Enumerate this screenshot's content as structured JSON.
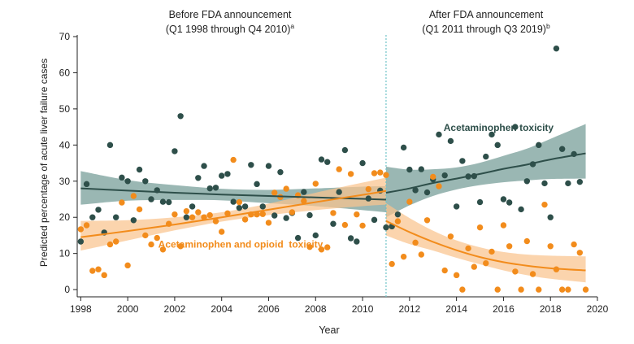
{
  "chart_data": {
    "type": "scatter",
    "title": "",
    "xlabel": "Year",
    "ylabel": "Predicted percentage of acute liver failure cases",
    "xlim": [
      1997.85,
      2020
    ],
    "ylim": [
      -2,
      70
    ],
    "xticks": [
      "1998",
      "2000",
      "2002",
      "2004",
      "2006",
      "2008",
      "2010",
      "2012",
      "2014",
      "2016",
      "2018",
      "2020"
    ],
    "yticks": [
      "0",
      "10",
      "20",
      "30",
      "40",
      "50",
      "60",
      "70"
    ],
    "colors": {
      "green": "#2e4f4a",
      "green_band": "#7ea39d",
      "orange": "#f28c1c",
      "orange_band": "#f9c48e",
      "divider": "#6fc3c8"
    },
    "divider_x": 2011.0,
    "period_labels": {
      "before_line1": "Before FDA announcement",
      "before_line2": "(Q1 1998 through Q4 2010)",
      "before_sup": "a",
      "after_line1": "After FDA announcement",
      "after_line2": "(Q1 2011 through Q3 2019)",
      "after_sup": "b"
    },
    "series": [
      {
        "name": "Acetaminophen toxicity",
        "color": "#2e4f4a",
        "points": [
          [
            1998.0,
            13.3
          ],
          [
            1998.25,
            29.2
          ],
          [
            1998.5,
            20.0
          ],
          [
            1998.75,
            22.1
          ],
          [
            1999.0,
            15.8
          ],
          [
            1999.25,
            40.0
          ],
          [
            1999.5,
            20.0
          ],
          [
            1999.75,
            31.0
          ],
          [
            2000.0,
            30.0
          ],
          [
            2000.25,
            19.2
          ],
          [
            2000.5,
            33.2
          ],
          [
            2000.75,
            30.0
          ],
          [
            2001.0,
            25.0
          ],
          [
            2001.25,
            27.5
          ],
          [
            2001.5,
            24.3
          ],
          [
            2001.75,
            24.2
          ],
          [
            2002.0,
            38.3
          ],
          [
            2002.25,
            48.0
          ],
          [
            2002.5,
            20.0
          ],
          [
            2002.75,
            23.0
          ],
          [
            2003.0,
            30.9
          ],
          [
            2003.25,
            34.2
          ],
          [
            2003.5,
            28.0
          ],
          [
            2003.75,
            28.2
          ],
          [
            2004.0,
            31.5
          ],
          [
            2004.25,
            32.0
          ],
          [
            2004.5,
            24.3
          ],
          [
            2004.75,
            22.6
          ],
          [
            2005.0,
            23.0
          ],
          [
            2005.25,
            34.5
          ],
          [
            2005.5,
            29.2
          ],
          [
            2005.75,
            23.0
          ],
          [
            2006.0,
            34.2
          ],
          [
            2006.25,
            20.5
          ],
          [
            2006.5,
            32.5
          ],
          [
            2006.75,
            19.8
          ],
          [
            2007.0,
            21.2
          ],
          [
            2007.25,
            14.3
          ],
          [
            2007.5,
            27.0
          ],
          [
            2007.75,
            20.6
          ],
          [
            2008.0,
            15.0
          ],
          [
            2008.25,
            36.0
          ],
          [
            2008.5,
            35.3
          ],
          [
            2008.75,
            18.2
          ],
          [
            2009.0,
            27.0
          ],
          [
            2009.25,
            38.6
          ],
          [
            2009.5,
            14.2
          ],
          [
            2009.75,
            13.3
          ],
          [
            2010.0,
            35.0
          ],
          [
            2010.25,
            25.2
          ],
          [
            2010.5,
            19.3
          ],
          [
            2010.75,
            27.4
          ],
          [
            2011.0,
            17.2
          ],
          [
            2011.25,
            17.5
          ],
          [
            2011.5,
            20.8
          ],
          [
            2011.75,
            39.3
          ],
          [
            2012.0,
            33.2
          ],
          [
            2012.25,
            27.5
          ],
          [
            2012.5,
            33.3
          ],
          [
            2012.75,
            26.9
          ],
          [
            2013.0,
            30.5
          ],
          [
            2013.25,
            42.9
          ],
          [
            2013.5,
            31.6
          ],
          [
            2013.75,
            41.1
          ],
          [
            2014.0,
            23.0
          ],
          [
            2014.25,
            35.6
          ],
          [
            2014.5,
            31.3
          ],
          [
            2014.75,
            31.4
          ],
          [
            2015.0,
            24.2
          ],
          [
            2015.25,
            36.8
          ],
          [
            2015.5,
            42.9
          ],
          [
            2015.75,
            40.0
          ],
          [
            2016.0,
            25.0
          ],
          [
            2016.25,
            24.1
          ],
          [
            2016.5,
            45.0
          ],
          [
            2016.75,
            22.2
          ],
          [
            2017.0,
            30.0
          ],
          [
            2017.25,
            34.7
          ],
          [
            2017.5,
            40.0
          ],
          [
            2017.75,
            29.4
          ],
          [
            2018.0,
            20.0
          ],
          [
            2018.25,
            66.7
          ],
          [
            2018.5,
            38.9
          ],
          [
            2018.75,
            29.4
          ],
          [
            2019.0,
            37.5
          ],
          [
            2019.25,
            29.8
          ]
        ]
      },
      {
        "name": "Acetaminophen and opioid toxicity",
        "color": "#f28c1c",
        "points": [
          [
            1998.0,
            16.7
          ],
          [
            1998.25,
            17.8
          ],
          [
            1998.5,
            5.2
          ],
          [
            1998.75,
            5.6
          ],
          [
            1999.0,
            4.0
          ],
          [
            1999.25,
            12.5
          ],
          [
            1999.5,
            13.3
          ],
          [
            1999.75,
            24.1
          ],
          [
            2000.0,
            6.7
          ],
          [
            2000.25,
            25.9
          ],
          [
            2000.5,
            22.2
          ],
          [
            2000.75,
            15.0
          ],
          [
            2001.0,
            12.5
          ],
          [
            2001.25,
            14.3
          ],
          [
            2001.5,
            11.1
          ],
          [
            2001.75,
            18.2
          ],
          [
            2002.0,
            20.8
          ],
          [
            2002.25,
            12.0
          ],
          [
            2002.5,
            21.7
          ],
          [
            2002.75,
            20.0
          ],
          [
            2003.0,
            21.4
          ],
          [
            2003.25,
            20.0
          ],
          [
            2003.5,
            20.6
          ],
          [
            2003.75,
            18.9
          ],
          [
            2004.0,
            16.0
          ],
          [
            2004.25,
            21.1
          ],
          [
            2004.5,
            35.9
          ],
          [
            2004.75,
            24.2
          ],
          [
            2005.0,
            19.4
          ],
          [
            2005.25,
            20.8
          ],
          [
            2005.5,
            20.8
          ],
          [
            2005.75,
            20.9
          ],
          [
            2006.0,
            18.5
          ],
          [
            2006.25,
            26.8
          ],
          [
            2006.5,
            25.6
          ],
          [
            2006.75,
            27.9
          ],
          [
            2007.0,
            21.4
          ],
          [
            2007.25,
            26.1
          ],
          [
            2007.5,
            24.5
          ],
          [
            2007.75,
            11.8
          ],
          [
            2008.0,
            29.3
          ],
          [
            2008.25,
            11.1
          ],
          [
            2008.5,
            11.7
          ],
          [
            2008.75,
            21.2
          ],
          [
            2009.0,
            33.3
          ],
          [
            2009.25,
            17.9
          ],
          [
            2009.5,
            32.0
          ],
          [
            2009.75,
            20.8
          ],
          [
            2010.0,
            17.7
          ],
          [
            2010.25,
            27.8
          ],
          [
            2010.5,
            32.2
          ],
          [
            2010.75,
            32.4
          ],
          [
            2011.0,
            31.7
          ],
          [
            2011.25,
            7.1
          ],
          [
            2011.5,
            18.9
          ],
          [
            2011.75,
            9.1
          ],
          [
            2012.0,
            24.3
          ],
          [
            2012.25,
            13.0
          ],
          [
            2012.5,
            9.7
          ],
          [
            2012.75,
            19.2
          ],
          [
            2013.0,
            31.2
          ],
          [
            2013.25,
            28.6
          ],
          [
            2013.5,
            5.3
          ],
          [
            2013.75,
            14.7
          ],
          [
            2014.0,
            4.0
          ],
          [
            2014.25,
            0.0
          ],
          [
            2014.5,
            11.4
          ],
          [
            2014.75,
            6.3
          ],
          [
            2015.0,
            17.2
          ],
          [
            2015.25,
            7.3
          ],
          [
            2015.5,
            10.5
          ],
          [
            2015.75,
            0.0
          ],
          [
            2016.0,
            17.8
          ],
          [
            2016.25,
            12.0
          ],
          [
            2016.5,
            5.0
          ],
          [
            2016.75,
            0.0
          ],
          [
            2017.0,
            13.4
          ],
          [
            2017.25,
            4.3
          ],
          [
            2017.5,
            0.0
          ],
          [
            2017.75,
            23.5
          ],
          [
            2018.0,
            12.0
          ],
          [
            2018.25,
            5.6
          ],
          [
            2018.5,
            0.0
          ],
          [
            2018.75,
            0.0
          ],
          [
            2019.0,
            12.5
          ],
          [
            2019.25,
            10.2
          ],
          [
            2019.5,
            0.0
          ]
        ]
      }
    ],
    "fits": [
      {
        "series": "Acetaminophen toxicity",
        "segment": "before",
        "x": [
          1998,
          2000,
          2002,
          2004,
          2006,
          2008,
          2010,
          2011
        ],
        "y": [
          28.0,
          27.4,
          26.8,
          26.3,
          25.9,
          25.5,
          25.1,
          24.9
        ],
        "lo": [
          23.5,
          24.6,
          24.8,
          24.7,
          23.9,
          23.1,
          22.0,
          21.4
        ],
        "hi": [
          32.8,
          30.3,
          28.9,
          27.9,
          27.6,
          28.0,
          28.5,
          28.6
        ]
      },
      {
        "series": "Acetaminophen toxicity",
        "segment": "after",
        "x": [
          2011,
          2012,
          2013,
          2014,
          2015,
          2016,
          2017,
          2018,
          2019.5
        ],
        "y": [
          26.8,
          28.0,
          29.5,
          30.7,
          32.0,
          33.4,
          34.6,
          36.0,
          37.7
        ],
        "lo": [
          20.0,
          23.3,
          25.9,
          27.7,
          28.9,
          29.7,
          30.2,
          30.6,
          30.7
        ],
        "hi": [
          34.0,
          33.2,
          33.3,
          33.8,
          35.1,
          37.0,
          39.0,
          41.7,
          45.8
        ]
      },
      {
        "series": "Acetaminophen and opioid toxicity",
        "segment": "before",
        "x": [
          1998,
          2000,
          2002,
          2004,
          2006,
          2008,
          2010,
          2011
        ],
        "y": [
          14.5,
          16.2,
          18.0,
          20.0,
          22.1,
          24.2,
          26.2,
          27.3
        ],
        "lo": [
          10.8,
          13.6,
          16.4,
          18.8,
          20.6,
          22.0,
          23.1,
          23.5
        ],
        "hi": [
          19.0,
          19.2,
          20.0,
          21.4,
          23.8,
          26.8,
          29.6,
          31.0
        ]
      },
      {
        "series": "Acetaminophen and opioid toxicity",
        "segment": "after",
        "x": [
          2011,
          2012,
          2013,
          2014,
          2015,
          2016,
          2017,
          2018,
          2019.5
        ],
        "y": [
          19.0,
          15.9,
          13.2,
          10.9,
          9.0,
          7.6,
          6.6,
          5.9,
          5.3
        ],
        "lo": [
          15.0,
          12.6,
          10.8,
          8.8,
          7.0,
          5.3,
          4.0,
          3.0,
          2.0
        ],
        "hi": [
          23.9,
          19.8,
          16.3,
          13.6,
          11.7,
          10.4,
          9.7,
          9.4,
          9.2
        ]
      }
    ],
    "annotations": [
      {
        "text": "Acetaminophen toxicity",
        "color": "#2e4f4a",
        "at": [
          2015.8,
          43.9
        ]
      },
      {
        "text": "Acetaminophen and opioid  toxicity",
        "color": "#f28c1c",
        "at": [
          2004.6,
          11.6
        ]
      }
    ]
  }
}
